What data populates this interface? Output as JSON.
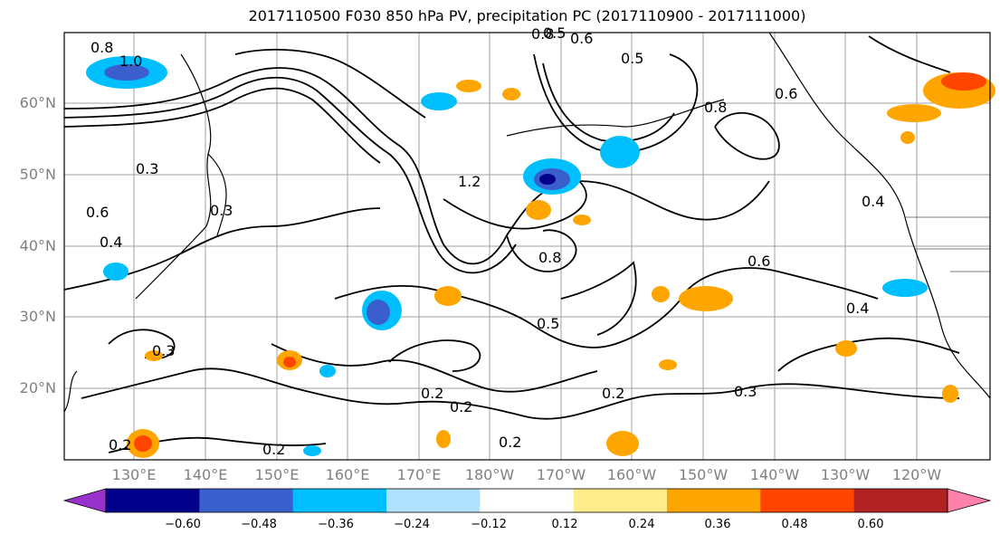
{
  "title": "2017110500 F030 850 hPa PV, precipitation PC (2017110900 - 2017111000)",
  "lat_labels": [
    "60°N",
    "50°N",
    "40°N",
    "30°N",
    "20°N"
  ],
  "lon_labels": [
    "130°E",
    "140°E",
    "150°E",
    "160°E",
    "170°E",
    "180°W",
    "170°W",
    "160°W",
    "150°W",
    "140°W",
    "130°W",
    "120°W"
  ],
  "colorbar": {
    "ticks": [
      "−0.60",
      "−0.48",
      "−0.36",
      "−0.24",
      "−0.12",
      "0.12",
      "0.24",
      "0.36",
      "0.48",
      "0.60"
    ],
    "colors": [
      "#9932cc",
      "#00008b",
      "#3a5fcd",
      "#00bfff",
      "#b0e2ff",
      "#ffffff",
      "#ffec8b",
      "#ffa500",
      "#ff4500",
      "#b22222",
      "#ff82ab"
    ]
  },
  "contour_labels": [
    "0.8",
    "1.0",
    "0.6",
    "0.5",
    "0.8",
    "0.4",
    "0.2",
    "0.3",
    "0.6",
    "0.5",
    "0.3",
    "0.2",
    "0.2",
    "0.2",
    "0.3",
    "0.2",
    "0.4",
    "0.6",
    "1.2",
    "0.8",
    "0.6",
    "0.5",
    "0.4",
    "0.3",
    "0.8",
    "0.2"
  ]
}
